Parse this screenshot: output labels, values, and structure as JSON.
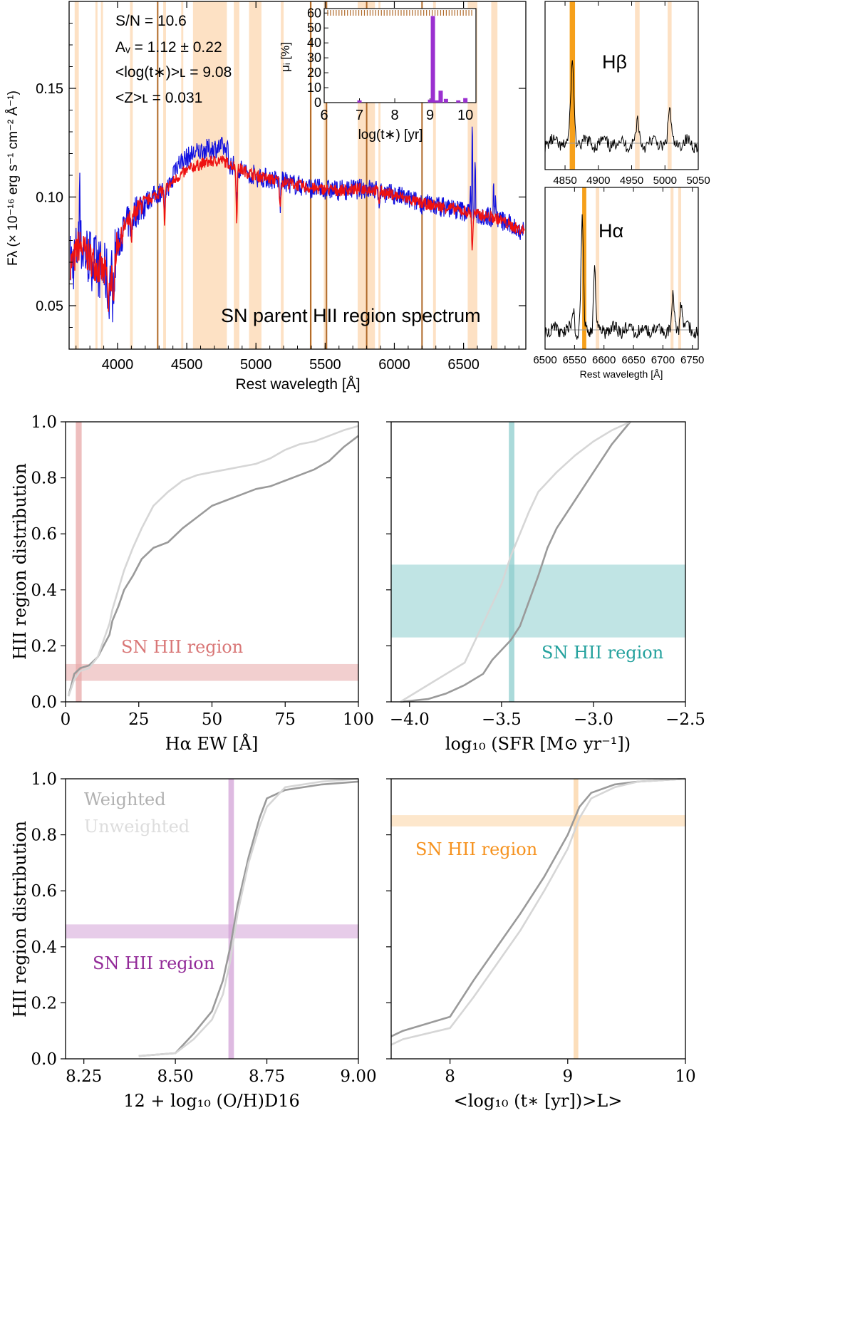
{
  "figure": {
    "spectrum": {
      "title": "SN parent HII region spectrum",
      "stats": {
        "sn": "S/N = 10.6",
        "av": "Aᵥ = 1.12 ± 0.22",
        "age": "<log(t∗)>ʟ = 9.08",
        "z": "<Z>ʟ = 0.031"
      },
      "xlabel": "Rest wavelegth [Å]",
      "ylabel": "Fλ (× 10⁻¹⁶ erg s⁻¹ cm⁻² Å⁻¹)",
      "xlim": [
        3650,
        6950
      ],
      "ylim": [
        0.03,
        0.19
      ],
      "xticks": [
        "4000",
        "4500",
        "5000",
        "5500",
        "6000",
        "6500"
      ],
      "yticks": [
        "0.05",
        "0.10",
        "0.15"
      ],
      "colors": {
        "observed": "#1010e0",
        "model": "#ee1111",
        "mask": "#fde1c4",
        "line": "#b06a2a"
      }
    },
    "inset": {
      "xlabel": "log(t∗) [yr]",
      "ylabel": "μᵢ [%]",
      "xticks": [
        "6",
        "7",
        "8",
        "9",
        "10"
      ],
      "yticks": [
        "0",
        "10",
        "20",
        "30",
        "40",
        "50",
        "60"
      ],
      "color": "#9b30d0"
    },
    "hbeta": {
      "label": "Hβ",
      "xticks": [
        "4850",
        "4900",
        "4950",
        "5000",
        "5050"
      ],
      "color": "#f6a01a"
    },
    "halpha": {
      "label": "Hα",
      "xticks": [
        "6500",
        "6550",
        "6600",
        "6650",
        "6700",
        "6750"
      ],
      "xlabel": "Rest wavelegth [Å]",
      "color": "#f6a01a"
    },
    "cdf": {
      "ylabel": "HII region distribution",
      "yticks": [
        "0.0",
        "0.2",
        "0.4",
        "0.6",
        "0.8",
        "1.0"
      ],
      "band_label": "SN HII region",
      "legend": {
        "weighted": "Weighted",
        "unweighted": "Unweighted"
      },
      "colors": {
        "weighted": "#9a9a9a",
        "unweighted": "#d6d6d6"
      },
      "panels": {
        "ew": {
          "xlabel": "Hα EW [Å]",
          "xticks": [
            "0",
            "25",
            "50",
            "75",
            "100"
          ],
          "color": "#e8a8a8",
          "text_color": "#d97777"
        },
        "sfr": {
          "xlabel": "log₁₀ (SFR [M⊙ yr⁻¹])",
          "xticks": [
            "−4.0",
            "−3.5",
            "−3.0",
            "−2.5"
          ],
          "color": "#8dcece",
          "text_color": "#23a19d"
        },
        "oh": {
          "xlabel": "12 + log₁₀ (O/H)D16",
          "xticks": [
            "8.25",
            "8.50",
            "8.75",
            "9.00"
          ],
          "color": "#d3a3d7",
          "text_color": "#922a98"
        },
        "age": {
          "xlabel": "<log₁₀ (t∗ [yr])>L>",
          "xticks": [
            "8",
            "9",
            "10"
          ],
          "color": "#fbd3a3",
          "text_color": "#f6921e"
        }
      }
    }
  },
  "chart_data": [
    {
      "type": "line",
      "title": "SN parent HII region spectrum",
      "xlabel": "Rest wavelegth [Å]",
      "ylabel": "Fλ (× 10⁻¹⁶ erg s⁻¹ cm⁻² Å⁻¹)",
      "xlim": [
        3650,
        6950
      ],
      "ylim": [
        0.03,
        0.19
      ],
      "continuum_knots": [
        [
          3680,
          0.07
        ],
        [
          3720,
          0.078
        ],
        [
          3800,
          0.072
        ],
        [
          3870,
          0.067
        ],
        [
          3950,
          0.062
        ],
        [
          3990,
          0.075
        ],
        [
          4050,
          0.086
        ],
        [
          4150,
          0.095
        ],
        [
          4250,
          0.1
        ],
        [
          4350,
          0.104
        ],
        [
          4450,
          0.11
        ],
        [
          4550,
          0.114
        ],
        [
          4650,
          0.116
        ],
        [
          4750,
          0.117
        ],
        [
          4850,
          0.114
        ],
        [
          4950,
          0.111
        ],
        [
          5050,
          0.109
        ],
        [
          5200,
          0.107
        ],
        [
          5400,
          0.104
        ],
        [
          5600,
          0.103
        ],
        [
          5800,
          0.104
        ],
        [
          6000,
          0.101
        ],
        [
          6200,
          0.097
        ],
        [
          6400,
          0.095
        ],
        [
          6600,
          0.092
        ],
        [
          6750,
          0.09
        ],
        [
          6900,
          0.085
        ]
      ],
      "emission_lines": [
        [
          3727,
          0.12
        ],
        [
          4861,
          0.117
        ],
        [
          4959,
          0.104
        ],
        [
          5007,
          0.108
        ],
        [
          6548,
          0.104
        ],
        [
          6563,
          0.15
        ],
        [
          6584,
          0.113
        ],
        [
          6717,
          0.11
        ],
        [
          6731,
          0.104
        ]
      ],
      "absorption_features": [
        [
          3934,
          0.035
        ],
        [
          3968,
          0.035
        ],
        [
          4101,
          0.07
        ],
        [
          4340,
          0.075
        ],
        [
          4861,
          0.075
        ],
        [
          5175,
          0.085
        ],
        [
          5890,
          0.095
        ],
        [
          6563,
          0.065
        ]
      ],
      "mask_bands": [
        [
          3690,
          3720
        ],
        [
          3840,
          3855
        ],
        [
          3880,
          3895
        ],
        [
          4090,
          4110
        ],
        [
          4285,
          4295
        ],
        [
          4330,
          4350
        ],
        [
          4460,
          4475
        ],
        [
          4545,
          4790
        ],
        [
          4840,
          4880
        ],
        [
          4950,
          5040
        ],
        [
          5180,
          5200
        ],
        [
          5395,
          5405
        ],
        [
          5490,
          5510
        ],
        [
          5735,
          5860
        ],
        [
          5885,
          5900
        ],
        [
          6280,
          6300
        ],
        [
          6530,
          6600
        ],
        [
          6700,
          6745
        ]
      ],
      "dark_lines": [
        4290,
        5395,
        5510,
        5800,
        6200
      ]
    },
    {
      "type": "bar",
      "xlabel": "log(t∗) [yr]",
      "ylabel": "μᵢ [%]",
      "xlim": [
        6,
        10.3
      ],
      "ylim": [
        0,
        63
      ],
      "x": [
        7.0,
        9.0,
        9.08,
        9.18,
        9.3,
        9.45,
        9.8,
        10.0
      ],
      "values": [
        1.5,
        2,
        58,
        1.5,
        8,
        2.5,
        1.5,
        3
      ]
    },
    {
      "type": "line",
      "title": "Hβ",
      "xlim": [
        4820,
        5050
      ],
      "ylim": [
        -0.3,
        4.0
      ],
      "lines": [
        [
          4861,
          2.2,
          3.5
        ],
        [
          4959,
          0.6,
          3.0
        ],
        [
          5007,
          0.9,
          3.0
        ]
      ],
      "bands": [
        [
          4857,
          4865
        ],
        [
          4955,
          4962
        ],
        [
          5004,
          5010
        ]
      ]
    },
    {
      "type": "line",
      "title": "Hα",
      "xlim": [
        6500,
        6760
      ],
      "ylim": [
        -0.2,
        4.0
      ],
      "lines": [
        [
          6563,
          3.1,
          2.8
        ],
        [
          6584,
          1.9,
          2.5
        ],
        [
          6548,
          0.6,
          2.3
        ],
        [
          6717,
          1.0,
          2.8
        ],
        [
          6731,
          0.8,
          2.8
        ]
      ],
      "bands": [
        [
          6563,
          6570
        ],
        [
          6586,
          6592
        ],
        [
          6713,
          6718
        ],
        [
          6726,
          6731
        ]
      ]
    },
    {
      "type": "line",
      "xlabel": "Hα EW [Å]",
      "ylabel": "HII region distribution",
      "xlim": [
        0,
        100
      ],
      "ylim": [
        0,
        1
      ],
      "series": [
        {
          "name": "Weighted",
          "x": [
            1,
            2,
            3,
            5,
            8,
            11,
            13,
            15,
            16,
            18,
            20,
            23,
            26,
            30,
            35,
            40,
            45,
            50,
            55,
            60,
            65,
            70,
            75,
            80,
            85,
            90,
            95,
            100
          ],
          "y": [
            0.02,
            0.06,
            0.1,
            0.12,
            0.13,
            0.16,
            0.2,
            0.24,
            0.29,
            0.34,
            0.4,
            0.45,
            0.51,
            0.55,
            0.57,
            0.62,
            0.66,
            0.7,
            0.72,
            0.74,
            0.76,
            0.77,
            0.79,
            0.81,
            0.83,
            0.86,
            0.91,
            0.95
          ]
        },
        {
          "name": "Unweighted",
          "x": [
            1,
            2,
            3,
            5,
            8,
            11,
            13,
            15,
            16,
            18,
            20,
            23,
            26,
            30,
            35,
            40,
            45,
            50,
            55,
            60,
            65,
            70,
            75,
            80,
            85,
            90,
            95,
            100
          ],
          "y": [
            0.02,
            0.05,
            0.08,
            0.11,
            0.12,
            0.16,
            0.22,
            0.28,
            0.33,
            0.4,
            0.47,
            0.55,
            0.62,
            0.7,
            0.75,
            0.79,
            0.81,
            0.82,
            0.83,
            0.84,
            0.85,
            0.87,
            0.9,
            0.92,
            0.93,
            0.95,
            0.97,
            0.985
          ]
        }
      ],
      "sn_band_x": [
        3.5,
        5.5
      ],
      "sn_band_y": [
        0.075,
        0.135
      ]
    },
    {
      "type": "line",
      "xlabel": "log₁₀ (SFR [M⊙ yr⁻¹])",
      "xlim": [
        -4.1,
        -2.5
      ],
      "ylim": [
        0,
        1
      ],
      "series": [
        {
          "name": "Weighted",
          "x": [
            -4.05,
            -3.9,
            -3.8,
            -3.7,
            -3.6,
            -3.55,
            -3.45,
            -3.4,
            -3.35,
            -3.3,
            -3.25,
            -3.2,
            -3.1,
            -3.0,
            -2.9,
            -2.8
          ],
          "y": [
            0.0,
            0.01,
            0.03,
            0.06,
            0.1,
            0.15,
            0.22,
            0.27,
            0.36,
            0.45,
            0.55,
            0.62,
            0.72,
            0.82,
            0.92,
            1.0
          ]
        },
        {
          "name": "Unweighted",
          "x": [
            -4.05,
            -3.9,
            -3.8,
            -3.7,
            -3.6,
            -3.5,
            -3.45,
            -3.4,
            -3.35,
            -3.3,
            -3.2,
            -3.1,
            -3.0,
            -2.9,
            -2.8
          ],
          "y": [
            0.0,
            0.06,
            0.1,
            0.14,
            0.28,
            0.42,
            0.52,
            0.6,
            0.68,
            0.75,
            0.82,
            0.88,
            0.93,
            0.97,
            1.0
          ]
        }
      ],
      "sn_band_x": [
        -3.46,
        -3.43
      ],
      "sn_band_y": [
        0.23,
        0.49
      ]
    },
    {
      "type": "line",
      "xlabel": "12 + log₁₀ (O/H)D16",
      "ylabel": "HII region distribution",
      "xlim": [
        8.2,
        9.0
      ],
      "ylim": [
        0,
        1
      ],
      "series": [
        {
          "name": "Weighted",
          "x": [
            8.4,
            8.5,
            8.55,
            8.6,
            8.63,
            8.65,
            8.67,
            8.7,
            8.73,
            8.75,
            8.8,
            8.9,
            9.0
          ],
          "y": [
            0.01,
            0.02,
            0.09,
            0.17,
            0.28,
            0.4,
            0.55,
            0.72,
            0.86,
            0.93,
            0.96,
            0.98,
            0.99
          ]
        },
        {
          "name": "Unweighted",
          "x": [
            8.4,
            8.5,
            8.55,
            8.6,
            8.63,
            8.65,
            8.67,
            8.7,
            8.73,
            8.75,
            8.8,
            8.9,
            9.0
          ],
          "y": [
            0.01,
            0.02,
            0.07,
            0.14,
            0.23,
            0.35,
            0.52,
            0.7,
            0.83,
            0.9,
            0.97,
            0.99,
            1.0
          ]
        }
      ],
      "sn_band_x": [
        8.645,
        8.66
      ],
      "sn_band_y": [
        0.43,
        0.48
      ]
    },
    {
      "type": "line",
      "xlabel": "<log₁₀ (t∗ [yr])>L>",
      "xlim": [
        7.5,
        10
      ],
      "ylim": [
        0,
        1
      ],
      "series": [
        {
          "name": "Weighted",
          "x": [
            7.5,
            7.6,
            8.0,
            8.2,
            8.4,
            8.6,
            8.8,
            9.0,
            9.1,
            9.2,
            9.4,
            9.6,
            10.0
          ],
          "y": [
            0.08,
            0.1,
            0.15,
            0.28,
            0.4,
            0.52,
            0.65,
            0.8,
            0.9,
            0.95,
            0.98,
            0.99,
            1.0
          ]
        },
        {
          "name": "Unweighted",
          "x": [
            7.5,
            7.6,
            8.0,
            8.2,
            8.4,
            8.6,
            8.8,
            9.0,
            9.1,
            9.2,
            9.4,
            9.6,
            10.0
          ],
          "y": [
            0.05,
            0.07,
            0.11,
            0.22,
            0.34,
            0.46,
            0.6,
            0.75,
            0.86,
            0.93,
            0.97,
            0.99,
            1.0
          ]
        }
      ],
      "sn_band_x": [
        9.05,
        9.09
      ],
      "sn_band_y": [
        0.83,
        0.87
      ]
    }
  ]
}
